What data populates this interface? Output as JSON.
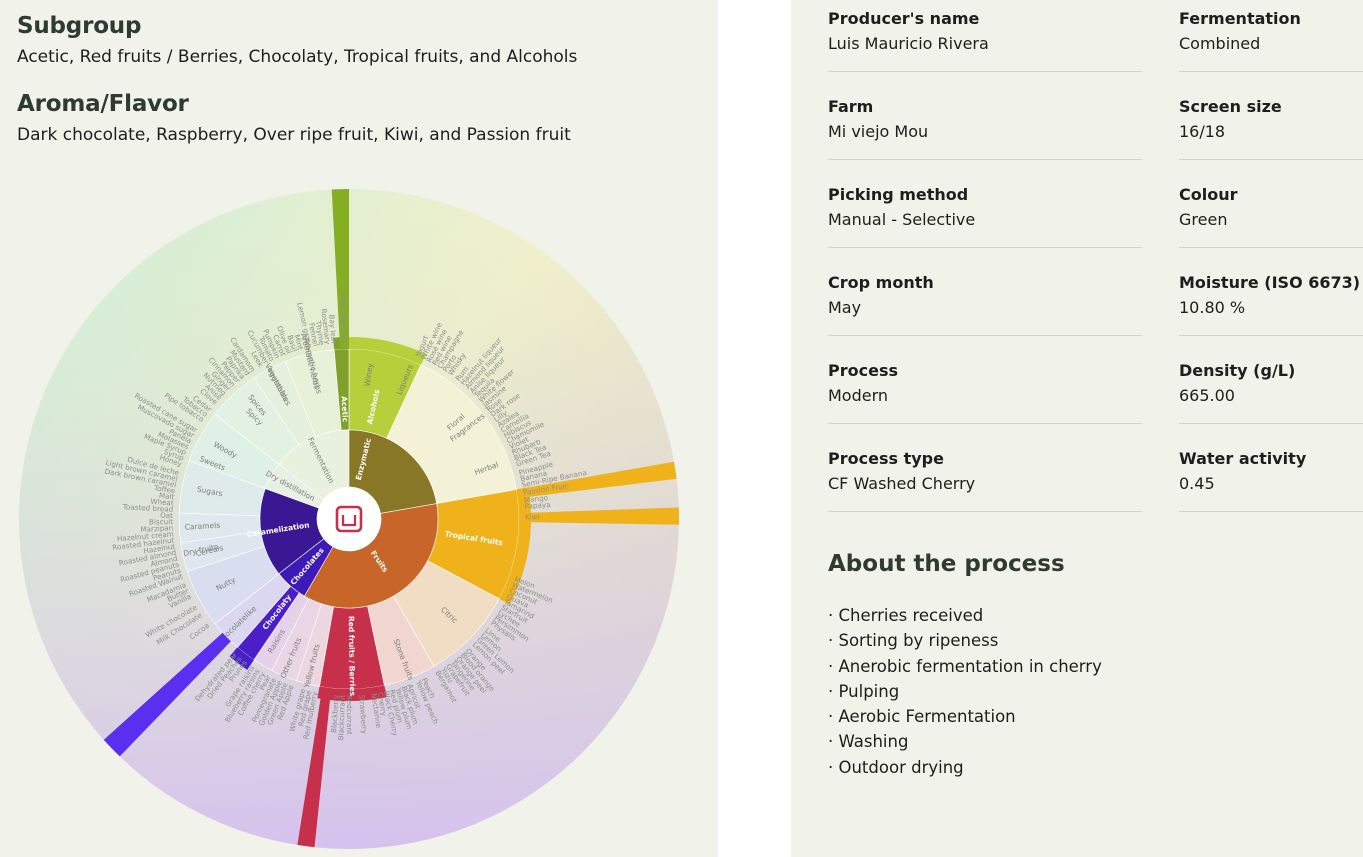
{
  "subgroup": {
    "title": "Subgroup",
    "text": "Acetic, Red fruits / Berries, Chocolaty, Tropical fruits, and Alcohols"
  },
  "aroma": {
    "title": "Aroma/Flavor",
    "text": "Dark chocolate, Raspberry, Over ripe fruit, Kiwi, and Passion fruit"
  },
  "wheel": {
    "center_logo": "logo-icon",
    "inner": [
      {
        "label": "Enzymatic",
        "color": "#877726",
        "start": -52,
        "end": 80
      },
      {
        "label": "Fruits",
        "color": "#c8662a",
        "start": 80,
        "end": 210
      },
      {
        "label": "Chocolates",
        "color": "#3d19b8",
        "start": 210,
        "end": 232
      },
      {
        "label": "Caramelization",
        "color": "#3a1893",
        "start": 232,
        "end": 290
      },
      {
        "label": "Dry distillation",
        "color": "#e8efe3",
        "start": 290,
        "end": 308
      },
      {
        "label": "Fermentation",
        "color": "#e8f0de",
        "start": 308,
        "end": 360
      }
    ],
    "middle": [
      {
        "label": "Alcohols",
        "color": "#b7cf3a",
        "start": 0,
        "end": 25,
        "highlight": true
      },
      {
        "label": "Fragrances",
        "color": "#f3f2d6",
        "start": 25,
        "end": 80
      },
      {
        "label": "Tropical fruits",
        "color": "#f0b21a",
        "start": 80,
        "end": 118,
        "highlight": true
      },
      {
        "label": "Citric",
        "color": "#f1dcc4",
        "start": 118,
        "end": 150
      },
      {
        "label": "Stone fruits",
        "color": "#f0d6cf",
        "start": 150,
        "end": 168
      },
      {
        "label": "Red fruits / Berries",
        "color": "#c7304b",
        "start": 168,
        "end": 190,
        "highlight": true
      },
      {
        "label": "Yellow fruits",
        "color": "#ecd6df",
        "start": 190,
        "end": 198
      },
      {
        "label": "Other fruits",
        "color": "#e9d5e4",
        "start": 198,
        "end": 207
      },
      {
        "label": "Raisins",
        "color": "#e5d2ea",
        "start": 207,
        "end": 214
      },
      {
        "label": "Chocolaty",
        "color": "#4a1fc9",
        "start": 214,
        "end": 221,
        "highlight": true
      },
      {
        "label": "Chocolatelike",
        "color": "#dbd7f0",
        "start": 221,
        "end": 232
      },
      {
        "label": "Nutty",
        "color": "#d8def0",
        "start": 232,
        "end": 252
      },
      {
        "label": "Cereals",
        "color": "#dee6ef",
        "start": 252,
        "end": 262
      },
      {
        "label": "Caramels",
        "color": "#dfe8ec",
        "start": 262,
        "end": 272
      },
      {
        "label": "Sugars",
        "color": "#dfeaea",
        "start": 272,
        "end": 290
      },
      {
        "label": "Woody",
        "color": "#dff0e6",
        "start": 290,
        "end": 308
      },
      {
        "label": "Spicy",
        "color": "#e2f1e2",
        "start": 308,
        "end": 326
      },
      {
        "label": "Vegetables",
        "color": "#e4f0dc",
        "start": 326,
        "end": 338
      },
      {
        "label": "Aromatic herbs",
        "color": "#e7f0d8",
        "start": 338,
        "end": 355
      },
      {
        "label": "Acetic",
        "color": "#7fa12a",
        "start": 355,
        "end": 360,
        "highlight": true
      }
    ],
    "outer": [
      {
        "label": "Over ripe fruit",
        "color": "#86ae25",
        "start": 357,
        "end": 360,
        "highlight": true
      },
      {
        "label": "Kiwi",
        "color": "#f0b21a",
        "start": 88,
        "end": 91,
        "highlight": true
      },
      {
        "label": "Passion fruit",
        "color": "#f0b21a",
        "start": 80,
        "end": 83,
        "highlight": true
      },
      {
        "label": "Raspberry",
        "color": "#c7304b",
        "start": 186,
        "end": 189,
        "highlight": true
      },
      {
        "label": "Dark chocolate",
        "color": "#5a2ff0",
        "start": 224,
        "end": 228,
        "highlight": true
      }
    ],
    "mid_labels": [
      {
        "text": "Spices",
        "angle": 321
      },
      {
        "text": "Sweets",
        "angle": 292
      },
      {
        "text": "Dry fruits",
        "angle": 258
      },
      {
        "text": "Floral",
        "angle": 48
      },
      {
        "text": "Herbal",
        "angle": 70
      },
      {
        "text": "Winey",
        "angle": 8
      },
      {
        "text": "Liqueurs",
        "angle": 22
      },
      {
        "text": "Vegetables",
        "angle": 332
      },
      {
        "text": "Aromatic herbs",
        "angle": 346
      }
    ],
    "outer_labels": [
      {
        "text": "Rosemary",
        "angle": 353
      },
      {
        "text": "Thyme",
        "angle": 351
      },
      {
        "text": "Fennel",
        "angle": 349
      },
      {
        "text": "Lemon grass",
        "angle": 347
      },
      {
        "text": "Mint",
        "angle": 344
      },
      {
        "text": "Basil",
        "angle": 342
      },
      {
        "text": "Olive oil",
        "angle": 340
      },
      {
        "text": "Carrot",
        "angle": 338
      },
      {
        "text": "Pumpkin",
        "angle": 336
      },
      {
        "text": "Tomato",
        "angle": 334
      },
      {
        "text": "Cucumber",
        "angle": 332
      },
      {
        "text": "Leek",
        "angle": 330
      },
      {
        "text": "Cardamom",
        "angle": 327
      },
      {
        "text": "Mustard",
        "angle": 325
      },
      {
        "text": "Paprika",
        "angle": 323
      },
      {
        "text": "Pepper",
        "angle": 321
      },
      {
        "text": "Cinnamon",
        "angle": 319
      },
      {
        "text": "Ginger",
        "angle": 317
      },
      {
        "text": "Nutmeg",
        "angle": 315
      },
      {
        "text": "Anise",
        "angle": 313
      },
      {
        "text": "Clove",
        "angle": 311
      },
      {
        "text": "Cedar",
        "angle": 308
      },
      {
        "text": "Tobacco",
        "angle": 306
      },
      {
        "text": "Pipe tobacco",
        "angle": 304
      },
      {
        "text": "Roasted cane sugar",
        "angle": 300
      },
      {
        "text": "Muscovado sugar",
        "angle": 298
      },
      {
        "text": "Panela",
        "angle": 296
      },
      {
        "text": "Molasses",
        "angle": 294
      },
      {
        "text": "Maple Syrup",
        "angle": 292
      },
      {
        "text": "Syrup",
        "angle": 290
      },
      {
        "text": "Honey",
        "angle": 288
      },
      {
        "text": "Dulce de leche",
        "angle": 285
      },
      {
        "text": "Light brown caramel",
        "angle": 283
      },
      {
        "text": "Dark brown caramel",
        "angle": 281
      },
      {
        "text": "Toffee",
        "angle": 279
      },
      {
        "text": "Malt",
        "angle": 277
      },
      {
        "text": "Wheat",
        "angle": 275
      },
      {
        "text": "Toasted bread",
        "angle": 273
      },
      {
        "text": "Oat",
        "angle": 271
      },
      {
        "text": "Biscuit",
        "angle": 269
      },
      {
        "text": "Marzipan",
        "angle": 267
      },
      {
        "text": "Hazelnut cream",
        "angle": 265
      },
      {
        "text": "Roasted hazelnut",
        "angle": 263
      },
      {
        "text": "Hazelnut",
        "angle": 261
      },
      {
        "text": "Roasted almond",
        "angle": 259
      },
      {
        "text": "Almond",
        "angle": 257
      },
      {
        "text": "Roasted peanuts",
        "angle": 255
      },
      {
        "text": "Peanuts",
        "angle": 253
      },
      {
        "text": "Roasted Walnut",
        "angle": 251
      },
      {
        "text": "Macadamia",
        "angle": 248
      },
      {
        "text": "Butter",
        "angle": 246
      },
      {
        "text": "Vanilla",
        "angle": 244
      },
      {
        "text": "White chocolate",
        "angle": 240
      },
      {
        "text": "Milk Chocolate",
        "angle": 237
      },
      {
        "text": "Cocoa",
        "angle": 233
      },
      {
        "text": "Dehydrated pear",
        "angle": 220
      },
      {
        "text": "Dried Peaches",
        "angle": 218
      },
      {
        "text": "Prunes",
        "angle": 216
      },
      {
        "text": "Grape raisins",
        "angle": 213
      },
      {
        "text": "Blueberry raisins",
        "angle": 211
      },
      {
        "text": "Coffee cherry",
        "angle": 209
      },
      {
        "text": "Pear",
        "angle": 207
      },
      {
        "text": "Pomegranate",
        "angle": 205
      },
      {
        "text": "Golden Apple",
        "angle": 203
      },
      {
        "text": "Green Apple",
        "angle": 201
      },
      {
        "text": "Red Apple",
        "angle": 199
      },
      {
        "text": "White grape",
        "angle": 195
      },
      {
        "text": "Red grape",
        "angle": 193
      },
      {
        "text": "Red mulberry",
        "angle": 191
      },
      {
        "text": "Blackberry",
        "angle": 184
      },
      {
        "text": "Blackcurrant",
        "angle": 182
      },
      {
        "text": "Redcurrant",
        "angle": 180
      },
      {
        "text": "Strawberry",
        "angle": 176
      },
      {
        "text": "Nectarine",
        "angle": 172
      },
      {
        "text": "Cherry",
        "angle": 170
      },
      {
        "text": "Black Cherry",
        "angle": 168
      },
      {
        "text": "Red plum",
        "angle": 166
      },
      {
        "text": "Yellow plum",
        "angle": 164
      },
      {
        "text": "Black plum",
        "angle": 162
      },
      {
        "text": "Apricot",
        "angle": 160
      },
      {
        "text": "Yellow peach",
        "angle": 157
      },
      {
        "text": "Peach",
        "angle": 155
      },
      {
        "text": "Bergamot",
        "angle": 150
      },
      {
        "text": "Yuzu",
        "angle": 148
      },
      {
        "text": "Grapefruit",
        "angle": 146
      },
      {
        "text": "Tangerine",
        "angle": 144
      },
      {
        "text": "Orange peel",
        "angle": 142
      },
      {
        "text": "Blood orange",
        "angle": 140
      },
      {
        "text": "Orange",
        "angle": 138
      },
      {
        "text": "Lemon peel",
        "angle": 135
      },
      {
        "text": "Green Lemon",
        "angle": 133
      },
      {
        "text": "Lemon",
        "angle": 131
      },
      {
        "text": "Lime",
        "angle": 129
      },
      {
        "text": "Physalis",
        "angle": 126
      },
      {
        "text": "Persimmon",
        "angle": 124
      },
      {
        "text": "Lychee",
        "angle": 122
      },
      {
        "text": "Starfruit",
        "angle": 120
      },
      {
        "text": "Tamarind",
        "angle": 118
      },
      {
        "text": "Guava",
        "angle": 116
      },
      {
        "text": "Coconut",
        "angle": 114
      },
      {
        "text": "Watermelon",
        "angle": 112
      },
      {
        "text": "Melon",
        "angle": 110
      },
      {
        "text": "Kiwi",
        "angle": 89.5
      },
      {
        "text": "Papaya",
        "angle": 86
      },
      {
        "text": "Mango",
        "angle": 84
      },
      {
        "text": "Passion Fruit",
        "angle": 81.5
      },
      {
        "text": "Semi-Ripe Banana",
        "angle": 79
      },
      {
        "text": "Banana",
        "angle": 77
      },
      {
        "text": "Pineapple",
        "angle": 75
      },
      {
        "text": "Green Tea",
        "angle": 72
      },
      {
        "text": "Black Tea",
        "angle": 70
      },
      {
        "text": "Rhubarb",
        "angle": 68
      },
      {
        "text": "Violet",
        "angle": 66
      },
      {
        "text": "Chamomile",
        "angle": 64
      },
      {
        "text": "Hibiscus",
        "angle": 62
      },
      {
        "text": "Camellia",
        "angle": 60
      },
      {
        "text": "Azalea",
        "angle": 58
      },
      {
        "text": "Lilly",
        "angle": 56
      },
      {
        "text": "Dark rose",
        "angle": 54
      },
      {
        "text": "Rose",
        "angle": 52
      },
      {
        "text": "Jasmine",
        "angle": 50
      },
      {
        "text": "White flower",
        "angle": 48
      },
      {
        "text": "Tequila",
        "angle": 46
      },
      {
        "text": "Anise liqueur",
        "angle": 44
      },
      {
        "text": "Almond liqueur",
        "angle": 42
      },
      {
        "text": "Hazelnut liqueur",
        "angle": 40
      },
      {
        "text": "Rum",
        "angle": 38
      },
      {
        "text": "Whisky",
        "angle": 35
      },
      {
        "text": "Porto",
        "angle": 33
      },
      {
        "text": "Champagne",
        "angle": 31
      },
      {
        "text": "Red wine",
        "angle": 29
      },
      {
        "text": "Rosé wine",
        "angle": 27
      },
      {
        "text": "White wine",
        "angle": 25
      },
      {
        "text": "Yogurt",
        "angle": 23
      },
      {
        "text": "Bay leaf",
        "angle": 355
      },
      {
        "text": "Over ripe fruit",
        "angle": 358.5
      }
    ]
  },
  "details": {
    "left": [
      {
        "label": "Producer's name",
        "value": "Luis Mauricio Rivera"
      },
      {
        "label": "Farm",
        "value": "Mi viejo Mou"
      },
      {
        "label": "Picking method",
        "value": "Manual - Selective"
      },
      {
        "label": "Crop month",
        "value": "May"
      },
      {
        "label": "Process",
        "value": "Modern"
      },
      {
        "label": "Process type",
        "value": "CF Washed Cherry"
      }
    ],
    "right": [
      {
        "label": "Fermentation",
        "value": "Combined"
      },
      {
        "label": "Screen size",
        "value": "16/18"
      },
      {
        "label": "Colour",
        "value": "Green"
      },
      {
        "label": "Moisture (ISO 6673)",
        "value": "10.80 %"
      },
      {
        "label": "Density (g/L)",
        "value": "665.00"
      },
      {
        "label": "Water activity",
        "value": "0.45"
      }
    ]
  },
  "about": {
    "title": "About the process",
    "steps": [
      "· Cherries received",
      "· Sorting by ripeness",
      "· Anerobic fermentation in cherry",
      "· Pulping",
      "· Aerobic Fermentation",
      "· Washing",
      "· Outdoor drying"
    ]
  }
}
